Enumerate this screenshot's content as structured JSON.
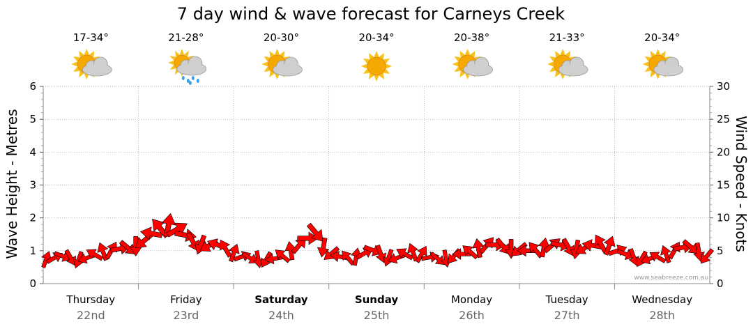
{
  "title": "7 day wind & wave forecast for Carneys Creek",
  "credit": "www.seabreeze.com.au",
  "days": [
    {
      "name": "Thursday",
      "date": "22nd",
      "bold": false,
      "temp": "17-34°",
      "icon": "partly-cloudy-icon"
    },
    {
      "name": "Friday",
      "date": "23rd",
      "bold": false,
      "temp": "21-28°",
      "icon": "rain-showers-icon"
    },
    {
      "name": "Saturday",
      "date": "24th",
      "bold": true,
      "temp": "20-30°",
      "icon": "partly-cloudy-icon"
    },
    {
      "name": "Sunday",
      "date": "25th",
      "bold": true,
      "temp": "20-34°",
      "icon": "sunny-icon"
    },
    {
      "name": "Monday",
      "date": "26th",
      "bold": false,
      "temp": "20-38°",
      "icon": "partly-cloudy-icon"
    },
    {
      "name": "Tuesday",
      "date": "27th",
      "bold": false,
      "temp": "21-33°",
      "icon": "partly-cloudy-icon"
    },
    {
      "name": "Wednesday",
      "date": "28th",
      "bold": false,
      "temp": "20-34°",
      "icon": "partly-cloudy-icon"
    }
  ],
  "colors": {
    "arrow": "#ff0000",
    "arrow_outline": "#000000",
    "grid": "#999999",
    "date": "#666666",
    "sun": "#f5a800",
    "cloud": "#cfcfcf"
  },
  "chart_data": {
    "type": "wind-arrows",
    "title": "7 day wind & wave forecast for Carneys Creek",
    "ylabel_left": "Wave Height - Metres",
    "ylabel_right": "Wind Speed - Knots",
    "ylim_left": [
      0,
      6
    ],
    "ylim_right": [
      0,
      30
    ],
    "yticks_left": [
      "0",
      "1",
      "2",
      "3",
      "4",
      "5",
      "6"
    ],
    "yticks_right": [
      "0",
      "5",
      "10",
      "15",
      "20",
      "25",
      "30"
    ],
    "grid": true,
    "x_days": [
      "Thursday 22nd",
      "Friday 23rd",
      "Saturday 24th",
      "Sunday 25th",
      "Monday 26th",
      "Tuesday 27th",
      "Wednesday 28th"
    ],
    "wind_knots": [
      3.6,
      3.9,
      4.2,
      4.0,
      3.7,
      3.9,
      4.4,
      4.8,
      5.0,
      5.3,
      5.5,
      5.8,
      6.5,
      7.6,
      8.4,
      8.8,
      8.2,
      7.4,
      6.4,
      6.0,
      5.8,
      5.9,
      5.3,
      4.6,
      4.1,
      3.9,
      3.8,
      3.7,
      3.8,
      4.2,
      4.9,
      5.8,
      6.9,
      7.8,
      5.6,
      4.6,
      4.1,
      3.9,
      4.0,
      4.6,
      5.1,
      4.6,
      4.0,
      3.9,
      4.5,
      4.7,
      4.4,
      4.0,
      3.8,
      3.9,
      4.2,
      4.5,
      4.8,
      5.3,
      5.8,
      5.9,
      5.7,
      5.4,
      5.2,
      5.0,
      5.1,
      5.4,
      5.8,
      5.9,
      5.6,
      5.3,
      5.4,
      5.8,
      6.0,
      5.7,
      5.0,
      4.5,
      4.1,
      3.8,
      3.8,
      4.0,
      4.4,
      5.0,
      5.5,
      5.6,
      4.9,
      4.2
    ],
    "wind_direction_deg": [
      20,
      60,
      110,
      150,
      200,
      250,
      300,
      340,
      30,
      80,
      130,
      180,
      230,
      280,
      320,
      10,
      60,
      100,
      150,
      200,
      240,
      290,
      330,
      20,
      70,
      120,
      170,
      210,
      260,
      310,
      350,
      40,
      90,
      140,
      190,
      230,
      280,
      320,
      10,
      60,
      110,
      160,
      200,
      250,
      300,
      340,
      30,
      80,
      130,
      170,
      220,
      270,
      310,
      350,
      40,
      90,
      140,
      180,
      230,
      270,
      320,
      10,
      50,
      100,
      150,
      190,
      240,
      280,
      330,
      20,
      70,
      110,
      160,
      210,
      250,
      300,
      340,
      30,
      80,
      130,
      170,
      220
    ]
  }
}
